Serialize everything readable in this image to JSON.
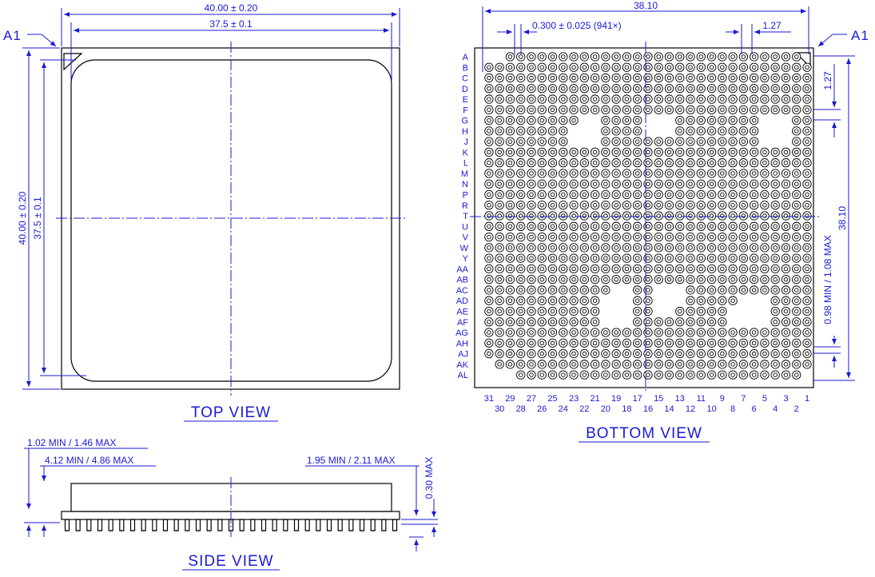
{
  "top_view": {
    "title": "TOP VIEW",
    "a1_label": "A1",
    "dim_outer_width": "40.00 ± 0.20",
    "dim_inner_width": "37.5 ± 0.1",
    "dim_outer_height": "40.00 ± 0.20",
    "dim_inner_height": "37.5 ± 0.1"
  },
  "bottom_view": {
    "title": "BOTTOM VIEW",
    "a1_label": "A1",
    "dim_total": "38.10",
    "dim_ball": "0.300 ± 0.025 (941×)",
    "dim_pitch_h": "1.27",
    "dim_pitch_v": "1.27",
    "dim_total_v": "38.10",
    "dim_pin_length": "0.98 MIN / 1.08 MAX",
    "row_labels": [
      "A",
      "B",
      "C",
      "D",
      "E",
      "F",
      "G",
      "H",
      "J",
      "K",
      "L",
      "M",
      "N",
      "P",
      "R",
      "T",
      "U",
      "V",
      "W",
      "Y",
      "AA",
      "AB",
      "AC",
      "AD",
      "AE",
      "AF",
      "AG",
      "AH",
      "AJ",
      "AK",
      "AL"
    ],
    "col_labels_top": [
      "31",
      "29",
      "27",
      "25",
      "23",
      "21",
      "19",
      "17",
      "15",
      "13",
      "11",
      "9",
      "7",
      "5",
      "3",
      "1"
    ],
    "col_labels_bottom": [
      "30",
      "28",
      "26",
      "24",
      "22",
      "20",
      "18",
      "16",
      "14",
      "12",
      "10",
      "8",
      "6",
      "4",
      "2"
    ]
  },
  "side_view": {
    "title": "SIDE VIEW",
    "dim_total_height": "1.02 MIN / 1.46 MAX",
    "dim_body_height": "4.12 MIN / 4.86 MAX",
    "dim_pin_height": "1.95 MIN / 2.11 MAX",
    "dim_substrate": "0.30 MAX"
  }
}
